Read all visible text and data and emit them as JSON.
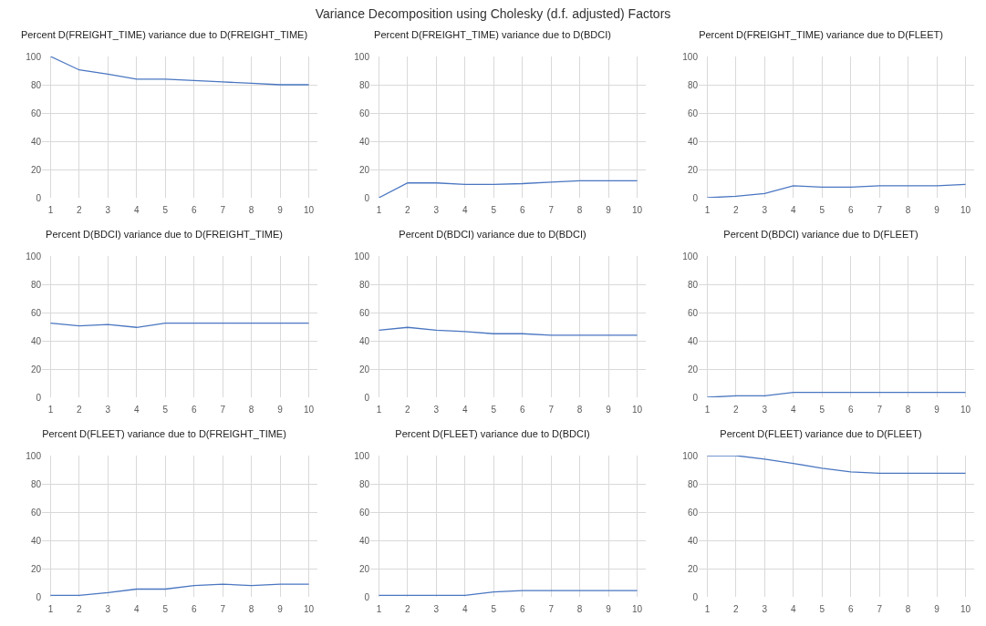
{
  "chart_data": [
    {
      "type": "line",
      "title": "Percent D(FREIGHT_TIME) variance due to D(FREIGHT_TIME)",
      "annotations": [
        "Variance Decomposition using Cholesky (d.f. adjusted) Factors"
      ],
      "categories": [
        "1",
        "2",
        "3",
        "4",
        "5",
        "6",
        "7",
        "8",
        "9",
        "10"
      ],
      "series": [
        {
          "color": "#4a76c1",
          "values": [
            100,
            90.5,
            87.5,
            84,
            84,
            83,
            82,
            81,
            80,
            80
          ]
        }
      ],
      "ylim": [
        0,
        100
      ],
      "yticks": [
        0,
        20,
        40,
        60,
        80,
        100
      ],
      "grid": true,
      "marker": "none",
      "line_style": "solid"
    },
    {
      "type": "line",
      "title": "Percent D(FREIGHT_TIME) variance due to D(BDCI)",
      "categories": [
        "1",
        "2",
        "3",
        "4",
        "5",
        "6",
        "7",
        "8",
        "9",
        "10"
      ],
      "series": [
        {
          "color": "#4a76c1",
          "values": [
            0,
            10.5,
            10.5,
            9.5,
            9.5,
            10,
            11,
            12,
            12,
            12
          ]
        }
      ],
      "ylim": [
        0,
        100
      ],
      "yticks": [
        0,
        20,
        40,
        60,
        80,
        100
      ],
      "grid": true,
      "marker": "none",
      "line_style": "solid"
    },
    {
      "type": "line",
      "title": "Percent D(FREIGHT_TIME) variance due to D(FLEET)",
      "categories": [
        "1",
        "2",
        "3",
        "4",
        "5",
        "6",
        "7",
        "8",
        "9",
        "10"
      ],
      "series": [
        {
          "color": "#4a76c1",
          "values": [
            0,
            1,
            3,
            8.5,
            7.5,
            7.5,
            8.5,
            8.5,
            8.5,
            9.5
          ]
        }
      ],
      "ylim": [
        0,
        100
      ],
      "yticks": [
        0,
        20,
        40,
        60,
        80,
        100
      ],
      "grid": true,
      "marker": "none",
      "line_style": "solid"
    },
    {
      "type": "line",
      "title": "Percent D(BDCI) variance due to D(FREIGHT_TIME)",
      "categories": [
        "1",
        "2",
        "3",
        "4",
        "5",
        "6",
        "7",
        "8",
        "9",
        "10"
      ],
      "series": [
        {
          "color": "#4a76c1",
          "values": [
            52.5,
            50.5,
            51.5,
            49.5,
            52.5,
            52.5,
            52.5,
            52.5,
            52.5,
            52.5
          ]
        }
      ],
      "ylim": [
        0,
        100
      ],
      "yticks": [
        0,
        20,
        40,
        60,
        80,
        100
      ],
      "grid": true,
      "marker": "none",
      "line_style": "solid"
    },
    {
      "type": "line",
      "title": "Percent D(BDCI) variance due to D(BDCI)",
      "categories": [
        "1",
        "2",
        "3",
        "4",
        "5",
        "6",
        "7",
        "8",
        "9",
        "10"
      ],
      "series": [
        {
          "color": "#4a76c1",
          "values": [
            47.5,
            49.5,
            47.5,
            46.5,
            45,
            45,
            44,
            44,
            44,
            44
          ]
        }
      ],
      "ylim": [
        0,
        100
      ],
      "yticks": [
        0,
        20,
        40,
        60,
        80,
        100
      ],
      "grid": true,
      "marker": "none",
      "line_style": "solid"
    },
    {
      "type": "line",
      "title": "Percent D(BDCI) variance due to D(FLEET)",
      "categories": [
        "1",
        "2",
        "3",
        "4",
        "5",
        "6",
        "7",
        "8",
        "9",
        "10"
      ],
      "series": [
        {
          "color": "#4a76c1",
          "values": [
            0,
            1,
            1,
            3.5,
            3.5,
            3.5,
            3.5,
            3.5,
            3.5,
            3.5
          ]
        }
      ],
      "ylim": [
        0,
        100
      ],
      "yticks": [
        0,
        20,
        40,
        60,
        80,
        100
      ],
      "grid": true,
      "marker": "none",
      "line_style": "solid"
    },
    {
      "type": "line",
      "title": "Percent D(FLEET) variance due to D(FREIGHT_TIME)",
      "categories": [
        "1",
        "2",
        "3",
        "4",
        "5",
        "6",
        "7",
        "8",
        "9",
        "10"
      ],
      "series": [
        {
          "color": "#4a76c1",
          "values": [
            1,
            1,
            3,
            5.5,
            5.5,
            8,
            9,
            8,
            9,
            9
          ]
        }
      ],
      "ylim": [
        0,
        100
      ],
      "yticks": [
        0,
        20,
        40,
        60,
        80,
        100
      ],
      "grid": true,
      "marker": "none",
      "line_style": "solid"
    },
    {
      "type": "line",
      "title": "Percent D(FLEET) variance due to D(BDCI)",
      "categories": [
        "1",
        "2",
        "3",
        "4",
        "5",
        "6",
        "7",
        "8",
        "9",
        "10"
      ],
      "series": [
        {
          "color": "#4a76c1",
          "values": [
            1,
            1,
            1,
            1,
            3.5,
            4.5,
            4.5,
            4.5,
            4.5,
            4.5
          ]
        }
      ],
      "ylim": [
        0,
        100
      ],
      "yticks": [
        0,
        20,
        40,
        60,
        80,
        100
      ],
      "grid": true,
      "marker": "none",
      "line_style": "solid"
    },
    {
      "type": "line",
      "title": "Percent D(FLEET) variance due to D(FLEET)",
      "categories": [
        "1",
        "2",
        "3",
        "4",
        "5",
        "6",
        "7",
        "8",
        "9",
        "10"
      ],
      "series": [
        {
          "color": "#4a76c1",
          "values": [
            100,
            100,
            97.5,
            94.5,
            91,
            88.5,
            87.5,
            87.5,
            87.5,
            87.5
          ]
        }
      ],
      "ylim": [
        0,
        100
      ],
      "yticks": [
        0,
        20,
        40,
        60,
        80,
        100
      ],
      "grid": true,
      "marker": "none",
      "line_style": "solid"
    }
  ]
}
